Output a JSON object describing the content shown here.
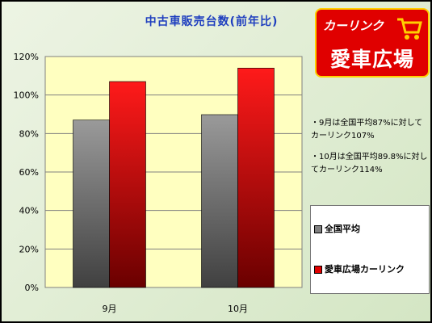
{
  "title": "中古車販売台数(前年比)",
  "logo": {
    "line1": "カーリンク",
    "line2": "愛車広場"
  },
  "notes": [
    "・9月は全国平均87%に対してカーリンク107%",
    "・10月は全国平均89.8%に対してカーリンク114%"
  ],
  "legend": [
    "全国平均",
    "愛車広場カーリンク"
  ],
  "colors": {
    "gray": "#808080",
    "red": "#e00000",
    "plot_bg": "#ffffc0"
  },
  "chart_data": {
    "type": "bar",
    "title": "中古車販売台数(前年比)",
    "categories": [
      "9月",
      "10月"
    ],
    "series": [
      {
        "name": "全国平均",
        "values": [
          87,
          89.8
        ]
      },
      {
        "name": "愛車広場カーリンク",
        "values": [
          107,
          114
        ]
      }
    ],
    "ylim": [
      0,
      120
    ],
    "yticks": [
      "0%",
      "20%",
      "40%",
      "60%",
      "80%",
      "100%",
      "120%"
    ],
    "ytick_values": [
      0,
      20,
      40,
      60,
      80,
      100,
      120
    ],
    "grid": true,
    "legend_position": "right"
  }
}
